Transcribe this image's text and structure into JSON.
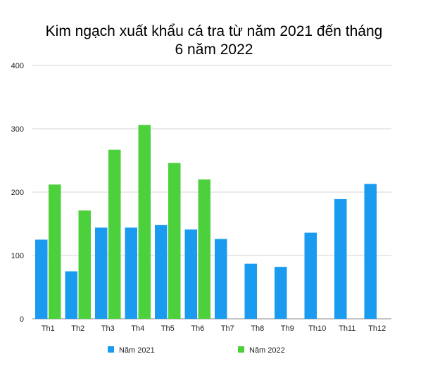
{
  "chart_data": {
    "type": "bar",
    "title_line1": "Kim ngạch xuất khẩu cá tra từ năm 2021 đến tháng",
    "title_line2": "6 năm 2022",
    "categories": [
      "Th1",
      "Th2",
      "Th3",
      "Th4",
      "Th5",
      "Th6",
      "Th7",
      "Th8",
      "Th9",
      "Th10",
      "Th11",
      "Th12"
    ],
    "series": [
      {
        "name": "Năm 2021",
        "color": "#1a9bf0",
        "values": [
          125,
          75,
          144,
          144,
          148,
          141,
          126,
          87,
          82,
          136,
          189,
          213
        ]
      },
      {
        "name": "Năm 2022",
        "color": "#4cd13c",
        "values": [
          212,
          171,
          267,
          306,
          246,
          220,
          null,
          null,
          null,
          null,
          null,
          null
        ]
      }
    ],
    "yticks": [
      "0",
      "100",
      "200",
      "300",
      "400"
    ],
    "ylim": [
      0,
      400
    ],
    "grid": true,
    "legend_position": "bottom"
  }
}
